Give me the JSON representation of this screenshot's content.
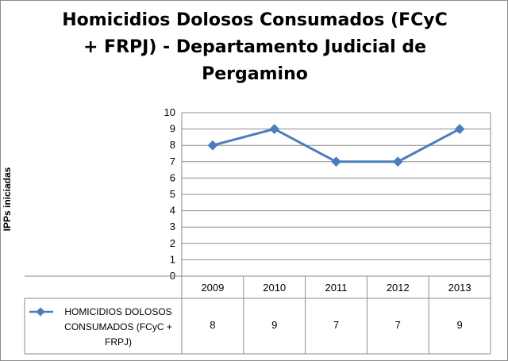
{
  "chart_data": {
    "type": "line",
    "title_lines": [
      "Homicidios Dolosos Consumados (FCyC",
      "+ FRPJ) - Departamento Judicial de",
      "Pergamino"
    ],
    "xlabel": "",
    "ylabel": "IPPs iniciadas",
    "categories": [
      "2009",
      "2010",
      "2011",
      "2012",
      "2013"
    ],
    "ylim": [
      0,
      10
    ],
    "yticks": [
      "0",
      "1",
      "2",
      "3",
      "4",
      "5",
      "6",
      "7",
      "8",
      "9",
      "10"
    ],
    "grid": true,
    "legend_placement": "data-table",
    "series": [
      {
        "name_lines": [
          "HOMICIDIOS DOLOSOS",
          "CONSUMADOS (FCyC +",
          "FRPJ)"
        ],
        "values": [
          8,
          9,
          7,
          7,
          9
        ],
        "color": "#4a7ebb"
      }
    ]
  }
}
